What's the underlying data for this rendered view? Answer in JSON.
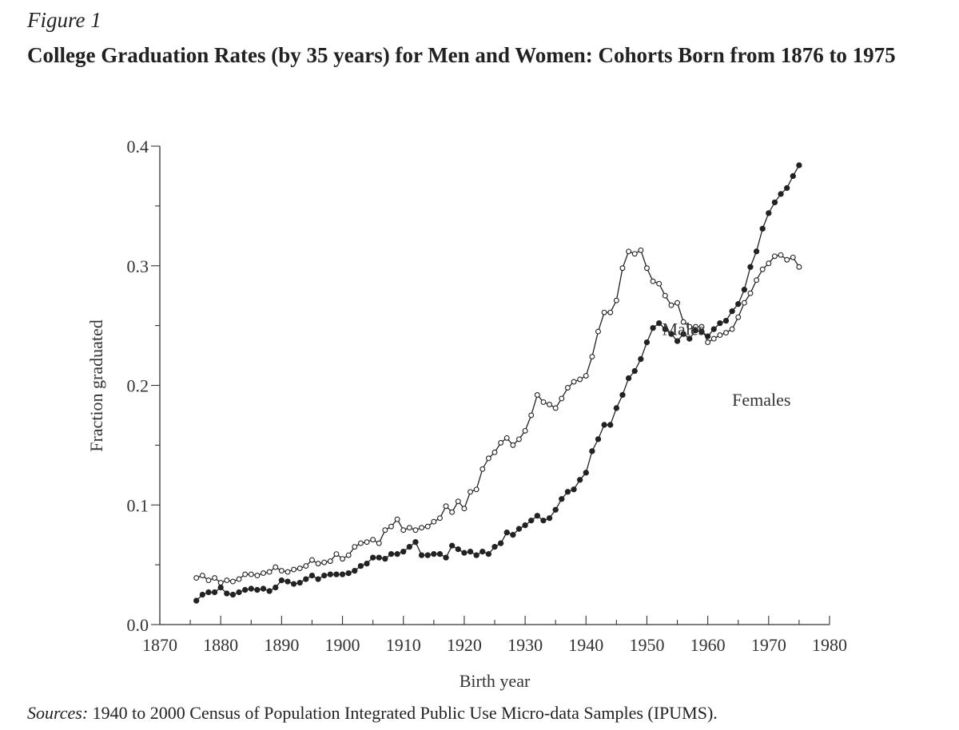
{
  "figure_label": "Figure 1",
  "title": "College Graduation Rates (by 35 years) for Men and Women: Cohorts Born from 1876 to 1975",
  "sources": {
    "lead": "Sources:",
    "text": " 1940 to 2000 Census of Population Integrated Public Use Micro-data Samples (IPUMS)."
  },
  "chart_data": {
    "type": "line",
    "xlabel": "Birth year",
    "ylabel": "Fraction graduated",
    "xlim": [
      1870,
      1980
    ],
    "ylim": [
      0.0,
      0.4
    ],
    "x_ticks": [
      "1870",
      "1880",
      "1890",
      "1900",
      "1910",
      "1920",
      "1930",
      "1940",
      "1950",
      "1960",
      "1970",
      "1980"
    ],
    "y_ticks": [
      "0.0",
      "0.1",
      "0.2",
      "0.3",
      "0.4"
    ],
    "grid": false,
    "x": [
      1876,
      1877,
      1878,
      1879,
      1880,
      1881,
      1882,
      1883,
      1884,
      1885,
      1886,
      1887,
      1888,
      1889,
      1890,
      1891,
      1892,
      1893,
      1894,
      1895,
      1896,
      1897,
      1898,
      1899,
      1900,
      1901,
      1902,
      1903,
      1904,
      1905,
      1906,
      1907,
      1908,
      1909,
      1910,
      1911,
      1912,
      1913,
      1914,
      1915,
      1916,
      1917,
      1918,
      1919,
      1920,
      1921,
      1922,
      1923,
      1924,
      1925,
      1926,
      1927,
      1928,
      1929,
      1930,
      1931,
      1932,
      1933,
      1934,
      1935,
      1936,
      1937,
      1938,
      1939,
      1940,
      1941,
      1942,
      1943,
      1944,
      1945,
      1946,
      1947,
      1948,
      1949,
      1950,
      1951,
      1952,
      1953,
      1954,
      1955,
      1956,
      1957,
      1958,
      1959,
      1960,
      1961,
      1962,
      1963,
      1964,
      1965,
      1966,
      1967,
      1968,
      1969,
      1970,
      1971,
      1972,
      1973,
      1974,
      1975
    ],
    "series": [
      {
        "name": "Males",
        "marker": "open-circle",
        "color": "#222222",
        "values": [
          0.039,
          0.041,
          0.037,
          0.039,
          0.035,
          0.037,
          0.036,
          0.038,
          0.042,
          0.042,
          0.041,
          0.043,
          0.044,
          0.048,
          0.045,
          0.044,
          0.046,
          0.047,
          0.049,
          0.054,
          0.051,
          0.052,
          0.053,
          0.059,
          0.055,
          0.058,
          0.065,
          0.068,
          0.069,
          0.071,
          0.068,
          0.079,
          0.082,
          0.088,
          0.079,
          0.081,
          0.079,
          0.081,
          0.082,
          0.086,
          0.089,
          0.099,
          0.094,
          0.103,
          0.097,
          0.111,
          0.113,
          0.13,
          0.139,
          0.144,
          0.152,
          0.156,
          0.15,
          0.155,
          0.162,
          0.175,
          0.192,
          0.186,
          0.184,
          0.181,
          0.189,
          0.198,
          0.203,
          0.205,
          0.208,
          0.224,
          0.245,
          0.261,
          0.261,
          0.271,
          0.298,
          0.312,
          0.31,
          0.313,
          0.298,
          0.287,
          0.285,
          0.275,
          0.267,
          0.269,
          0.253,
          0.249,
          0.249,
          0.249,
          0.236,
          0.239,
          0.242,
          0.244,
          0.247,
          0.257,
          0.269,
          0.277,
          0.288,
          0.297,
          0.302,
          0.308,
          0.309,
          0.305,
          0.307,
          0.299
        ]
      },
      {
        "name": "Females",
        "marker": "filled-circle",
        "color": "#222222",
        "values": [
          0.02,
          0.025,
          0.027,
          0.027,
          0.031,
          0.026,
          0.025,
          0.027,
          0.029,
          0.03,
          0.029,
          0.03,
          0.028,
          0.031,
          0.037,
          0.036,
          0.034,
          0.035,
          0.038,
          0.041,
          0.038,
          0.041,
          0.042,
          0.042,
          0.042,
          0.043,
          0.045,
          0.049,
          0.051,
          0.056,
          0.056,
          0.055,
          0.059,
          0.059,
          0.061,
          0.065,
          0.069,
          0.058,
          0.058,
          0.059,
          0.059,
          0.056,
          0.066,
          0.063,
          0.06,
          0.061,
          0.058,
          0.061,
          0.059,
          0.065,
          0.068,
          0.077,
          0.075,
          0.08,
          0.083,
          0.087,
          0.091,
          0.087,
          0.089,
          0.096,
          0.105,
          0.111,
          0.113,
          0.121,
          0.127,
          0.145,
          0.155,
          0.167,
          0.167,
          0.181,
          0.192,
          0.206,
          0.212,
          0.222,
          0.236,
          0.248,
          0.252,
          0.247,
          0.243,
          0.237,
          0.243,
          0.239,
          0.246,
          0.245,
          0.241,
          0.247,
          0.252,
          0.254,
          0.262,
          0.268,
          0.28,
          0.299,
          0.312,
          0.331,
          0.344,
          0.353,
          0.36,
          0.365,
          0.375,
          0.384
        ]
      }
    ],
    "annotations": [
      {
        "text": "Males",
        "x": 1952.5,
        "y": 0.242
      },
      {
        "text": "Females",
        "x": 1964,
        "y": 0.183
      }
    ]
  }
}
